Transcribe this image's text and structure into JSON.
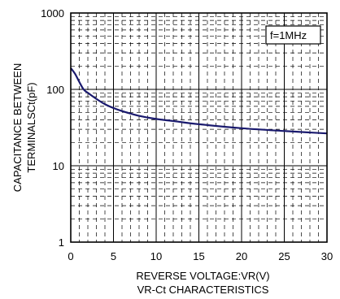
{
  "chart_data": {
    "type": "line",
    "title": "VR-Ct CHARACTERISTICS",
    "xlabel": "REVERSE VOLTAGE:VR(V)",
    "ylabel_lines": [
      "CAPACITANCE BETWEEN",
      "TERMINALSCt(pF)"
    ],
    "xlim": [
      0,
      30
    ],
    "ylim": [
      1,
      1000
    ],
    "y_scale": "log",
    "x_ticks": [
      "0",
      "5",
      "10",
      "15",
      "20",
      "25",
      "30"
    ],
    "y_ticks": [
      "1",
      "10",
      "100",
      "1000"
    ],
    "grid": true,
    "annotation": "f=1MHz",
    "series": [
      {
        "color": "#1a1a6e",
        "x": [
          0,
          0.5,
          1,
          1.5,
          2,
          3,
          4,
          5,
          6,
          8,
          10,
          12,
          15,
          20,
          25,
          30
        ],
        "y": [
          190,
          160,
          125,
          100,
          90,
          75,
          64,
          57,
          52,
          45,
          41,
          38.5,
          35,
          31,
          28.5,
          26.5
        ]
      }
    ]
  }
}
